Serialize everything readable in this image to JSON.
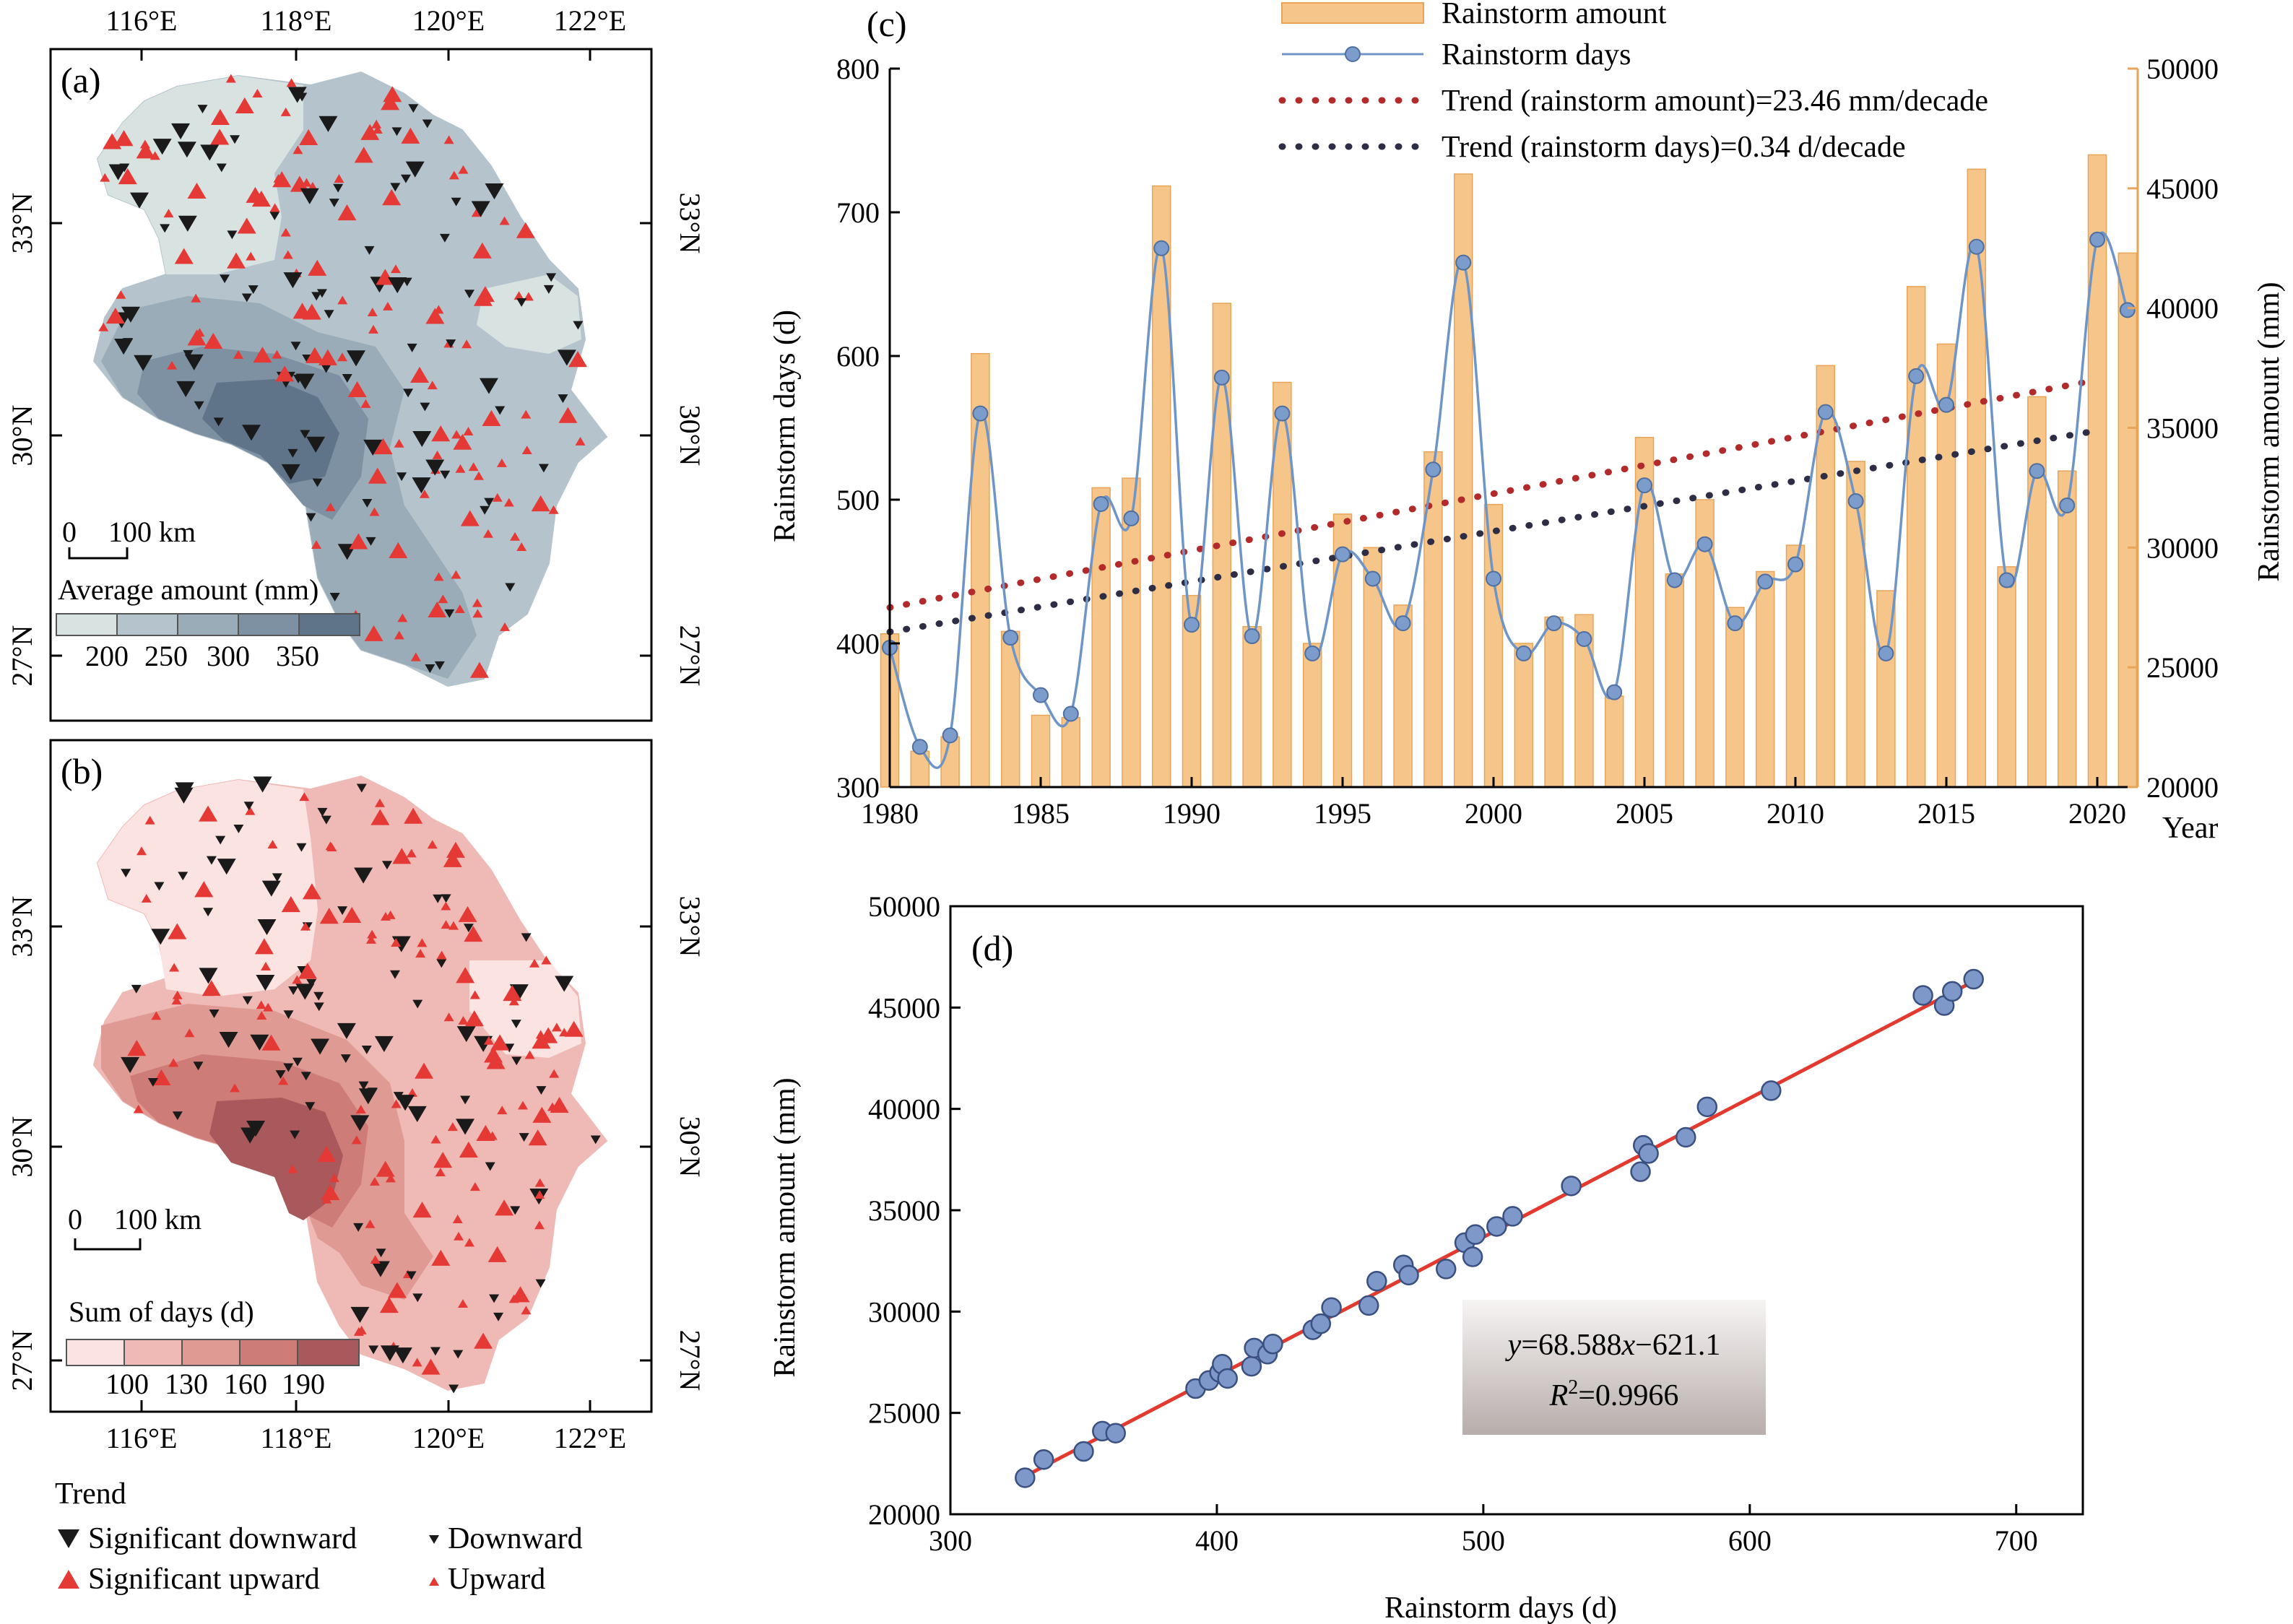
{
  "colors": {
    "bar": "#f5c58a",
    "bar_stroke": "#e8a55a",
    "days_line": "#6f94c6",
    "days_marker": "#7c9ccc",
    "trend_amount": "#b32a2a",
    "trend_days": "#2d2d45",
    "fit_line": "#e23a2f",
    "scatter_fill": "#7e98c9",
    "scatter_stroke": "#3a5080",
    "map_a_ramp": [
      "#d7e2e1",
      "#b5c4cc",
      "#9aacb8",
      "#7d91a3",
      "#5f7489"
    ],
    "map_b_ramp": [
      "#fbe3e2",
      "#efbab6",
      "#e09a94",
      "#cd7c77",
      "#a9585b"
    ],
    "sig_down": "#1a1a1a",
    "sig_up": "#e53935"
  },
  "maps": {
    "a": {
      "label": "(a)",
      "lon_ticks": [
        "116°E",
        "118°E",
        "120°E",
        "122°E"
      ],
      "lat_ticks": [
        "33°N",
        "30°N",
        "27°N"
      ],
      "scalebar": {
        "zero": "0",
        "distance": "100 km"
      },
      "legend_title": "Average amount (mm)",
      "legend_ticks": [
        "200",
        "250",
        "300",
        "350"
      ]
    },
    "b": {
      "label": "(b)",
      "lon_ticks": [
        "116°E",
        "118°E",
        "120°E",
        "122°E"
      ],
      "lat_ticks": [
        "33°N",
        "30°N",
        "27°N"
      ],
      "scalebar": {
        "zero": "0",
        "distance": "100 km"
      },
      "legend_title": "Sum of days (d)",
      "legend_ticks": [
        "100",
        "130",
        "160",
        "190"
      ]
    }
  },
  "trend_legend": {
    "title": "Trend",
    "items": [
      "Significant downward",
      "Downward",
      "Significant upward",
      "Upward"
    ]
  },
  "chart_data": [
    {
      "panel": "(c)",
      "type": "bar",
      "x": [
        1980,
        1981,
        1982,
        1983,
        1984,
        1985,
        1986,
        1987,
        1988,
        1989,
        1990,
        1991,
        1992,
        1993,
        1994,
        1995,
        1996,
        1997,
        1998,
        1999,
        2000,
        2001,
        2002,
        2003,
        2004,
        2005,
        2006,
        2007,
        2008,
        2009,
        2010,
        2011,
        2012,
        2013,
        2014,
        2015,
        2016,
        2017,
        2018,
        2019,
        2020,
        2021
      ],
      "x_ticks": [
        "1980",
        "1985",
        "1990",
        "1995",
        "2000",
        "2005",
        "2010",
        "2015",
        "2020"
      ],
      "xlabel": "Year",
      "ylabel_left": "Rainstorm days (d)",
      "ylabel_right": "Rainstorm amount (mm)",
      "ylim_left": [
        300,
        800
      ],
      "ylim_right": [
        20000,
        50000
      ],
      "left_ticks": [
        "300",
        "400",
        "500",
        "600",
        "700",
        "800"
      ],
      "right_ticks": [
        "20000",
        "25000",
        "30000",
        "35000",
        "40000",
        "45000",
        "50000"
      ],
      "series": [
        {
          "name": "Rainstorm amount",
          "type": "bar",
          "axis": "right",
          "values": [
            26400,
            21500,
            22100,
            38100,
            26500,
            23000,
            22900,
            32500,
            32900,
            45100,
            28000,
            40200,
            26700,
            36900,
            26000,
            31400,
            30000,
            27600,
            34000,
            45600,
            31800,
            26000,
            27100,
            27200,
            23800,
            34600,
            28900,
            32000,
            27500,
            29000,
            30100,
            37600,
            33600,
            28200,
            40900,
            38500,
            45800,
            29200,
            36300,
            33200,
            46400,
            42300
          ],
          "note_right_values": true
        },
        {
          "name": "Rainstorm days",
          "type": "line",
          "axis": "left",
          "values": [
            397,
            328,
            336,
            560,
            404,
            364,
            351,
            497,
            487,
            675,
            413,
            585,
            405,
            560,
            393,
            462,
            445,
            414,
            521,
            665,
            445,
            393,
            414,
            403,
            366,
            510,
            444,
            469,
            414,
            443,
            455,
            561,
            499,
            393,
            586,
            566,
            676,
            444,
            520,
            496,
            681,
            632
          ]
        }
      ],
      "trends": [
        {
          "name": "Trend (rainstorm amount)=23.46 mm/decade",
          "axis": "right",
          "start": 27500,
          "end": 37000
        },
        {
          "name": "Trend (rainstorm days)=0.34 d/decade",
          "axis": "left",
          "start": 408,
          "end": 548
        }
      ]
    },
    {
      "panel": "(d)",
      "type": "scatter",
      "xlabel": "Rainstorm days (d)",
      "ylabel": "Rainstorm amount (mm)",
      "xlim": [
        300,
        725
      ],
      "ylim": [
        20000,
        50000
      ],
      "x_ticks": [
        "300",
        "400",
        "500",
        "600",
        "700"
      ],
      "y_ticks": [
        "20000",
        "25000",
        "30000",
        "35000",
        "40000",
        "45000",
        "50000"
      ],
      "points": [
        [
          328,
          21800
        ],
        [
          335,
          22700
        ],
        [
          350,
          23100
        ],
        [
          357,
          24100
        ],
        [
          362,
          24000
        ],
        [
          392,
          26200
        ],
        [
          397,
          26600
        ],
        [
          401,
          27000
        ],
        [
          402,
          27400
        ],
        [
          404,
          26700
        ],
        [
          413,
          27300
        ],
        [
          414,
          28200
        ],
        [
          419,
          27900
        ],
        [
          421,
          28400
        ],
        [
          436,
          29100
        ],
        [
          439,
          29400
        ],
        [
          443,
          30200
        ],
        [
          457,
          30300
        ],
        [
          460,
          31500
        ],
        [
          470,
          32300
        ],
        [
          472,
          31800
        ],
        [
          486,
          32100
        ],
        [
          493,
          33400
        ],
        [
          496,
          32700
        ],
        [
          497,
          33800
        ],
        [
          505,
          34200
        ],
        [
          511,
          34700
        ],
        [
          533,
          36200
        ],
        [
          559,
          36900
        ],
        [
          560,
          38200
        ],
        [
          562,
          37800
        ],
        [
          576,
          38600
        ],
        [
          584,
          40100
        ],
        [
          608,
          40900
        ],
        [
          665,
          45600
        ],
        [
          673,
          45100
        ],
        [
          676,
          45800
        ],
        [
          684,
          46400
        ]
      ],
      "fit": {
        "slope": 68.588,
        "intercept": -621.1,
        "x_range": [
          328,
          684
        ]
      },
      "equation": {
        "lhs": "y",
        "mid": "=68.588",
        "var": "x",
        "rhs": "−621.1",
        "r2_label": "R",
        "r2_sup": "2",
        "r2_value": "=0.9966"
      }
    }
  ]
}
